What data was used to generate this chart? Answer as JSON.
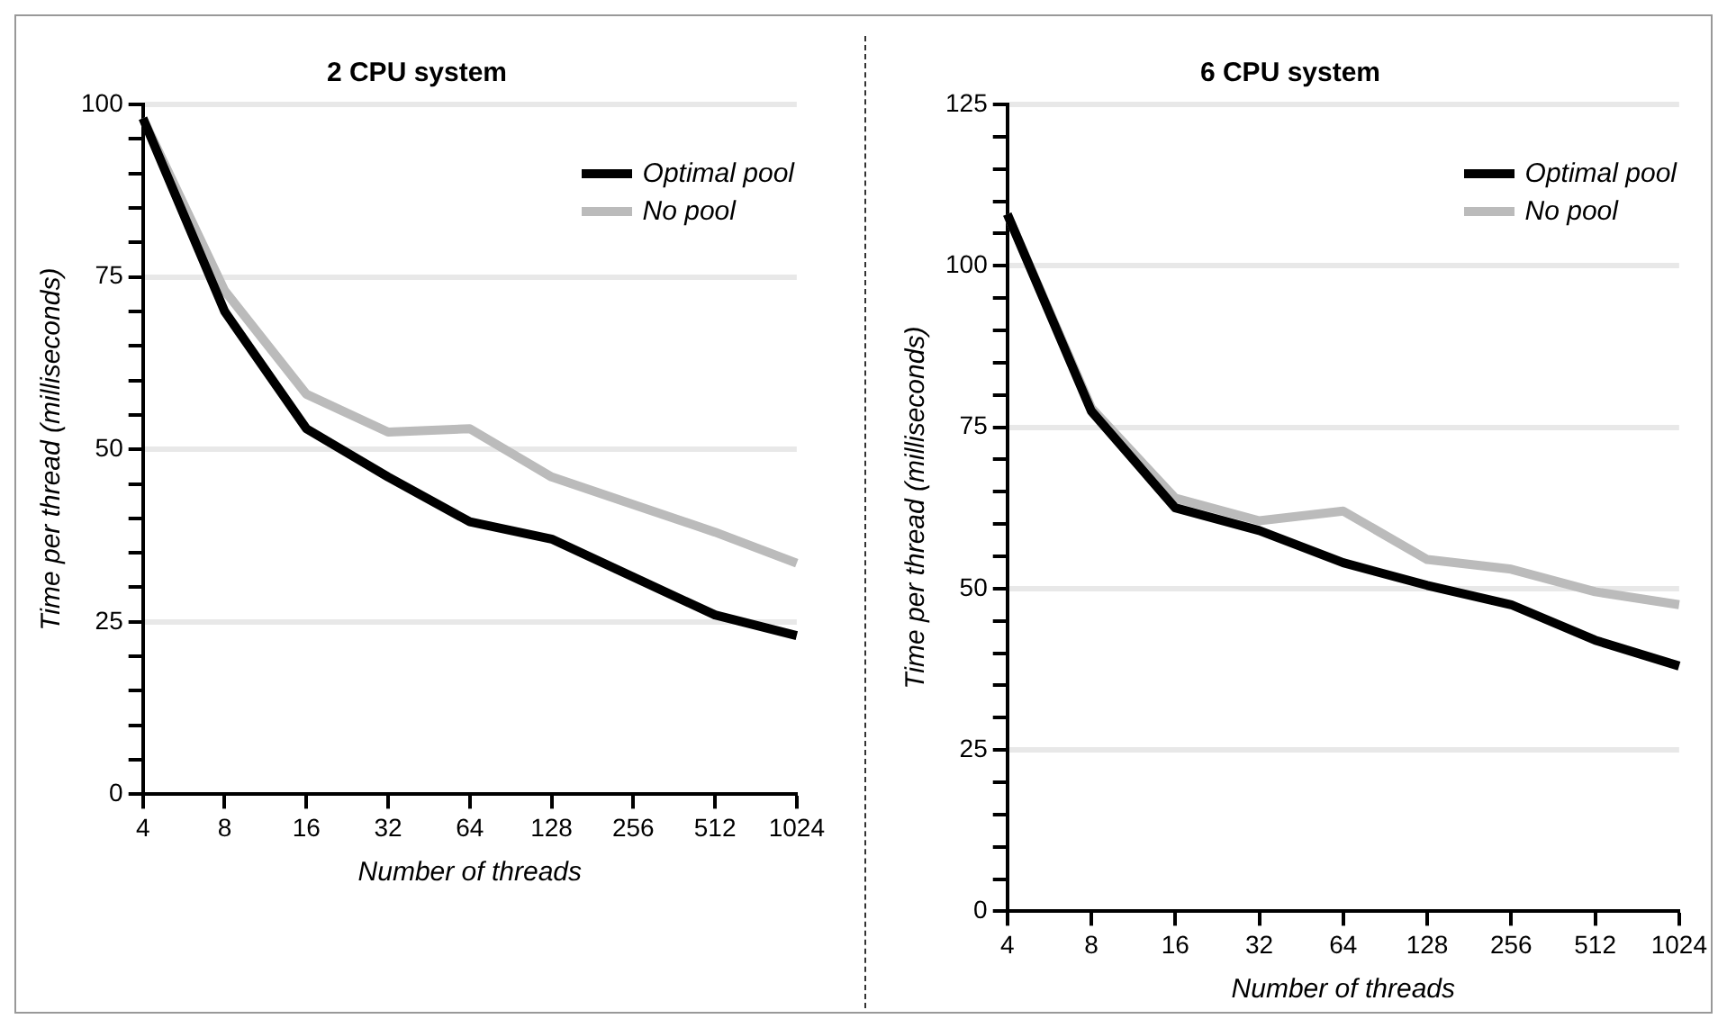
{
  "chart_data": [
    {
      "type": "line",
      "title": "2 CPU system",
      "xlabel": "Number of threads",
      "ylabel": "Time per thread (milliseconds)",
      "categories": [
        "4",
        "8",
        "16",
        "32",
        "64",
        "128",
        "256",
        "512",
        "1024"
      ],
      "series": [
        {
          "name": "Optimal pool",
          "color": "#000000",
          "values": [
            98,
            70,
            53,
            46,
            39.5,
            37,
            31.5,
            26,
            23
          ]
        },
        {
          "name": "No pool",
          "color": "#bbbbbb",
          "values": [
            98,
            73,
            58,
            52.5,
            53,
            46,
            42,
            38,
            33.5
          ]
        }
      ],
      "ylim": [
        0,
        100
      ],
      "yticks": [
        0,
        {
          "value": 5,
          "label": null
        },
        {
          "value": 10,
          "label": null
        },
        {
          "value": 15,
          "label": null
        },
        {
          "value": 20,
          "label": null
        },
        25,
        {
          "value": 30,
          "label": null
        },
        {
          "value": 35,
          "label": null
        },
        {
          "value": 40,
          "label": null
        },
        {
          "value": 45,
          "label": null
        },
        50,
        {
          "value": 55,
          "label": null
        },
        {
          "value": 60,
          "label": null
        },
        {
          "value": 65,
          "label": null
        },
        {
          "value": 70,
          "label": null
        },
        75,
        {
          "value": 80,
          "label": null
        },
        {
          "value": 85,
          "label": null
        },
        {
          "value": 90,
          "label": null
        },
        {
          "value": 95,
          "label": null
        },
        100
      ],
      "grid": "y",
      "legend": "top right",
      "marker": "none",
      "line_style": "solid"
    },
    {
      "type": "line",
      "title": "6 CPU system",
      "xlabel": "Number of threads",
      "ylabel": "Time per thread (milliseconds)",
      "categories": [
        "4",
        "8",
        "16",
        "32",
        "64",
        "128",
        "256",
        "512",
        "1024"
      ],
      "series": [
        {
          "name": "Optimal pool",
          "color": "#000000",
          "values": [
            108,
            77.5,
            62.5,
            59,
            54,
            50.5,
            47.5,
            42,
            38
          ]
        },
        {
          "name": "No pool",
          "color": "#bbbbbb",
          "values": [
            108,
            78,
            64,
            60.5,
            62,
            54.5,
            53,
            49.5,
            47.5
          ]
        }
      ],
      "ylim": [
        0,
        125
      ],
      "yticks": [
        0,
        {
          "value": 5,
          "label": null
        },
        {
          "value": 10,
          "label": null
        },
        {
          "value": 15,
          "label": null
        },
        {
          "value": 20,
          "label": null
        },
        25,
        {
          "value": 30,
          "label": null
        },
        {
          "value": 35,
          "label": null
        },
        {
          "value": 40,
          "label": null
        },
        {
          "value": 45,
          "label": null
        },
        50,
        {
          "value": 55,
          "label": null
        },
        {
          "value": 60,
          "label": null
        },
        {
          "value": 65,
          "label": null
        },
        {
          "value": 70,
          "label": null
        },
        75,
        {
          "value": 80,
          "label": null
        },
        {
          "value": 85,
          "label": null
        },
        {
          "value": 90,
          "label": null
        },
        {
          "value": 95,
          "label": null
        },
        100,
        {
          "value": 105,
          "label": null
        },
        {
          "value": 110,
          "label": null
        },
        {
          "value": 115,
          "label": null
        },
        {
          "value": 120,
          "label": null
        },
        125
      ],
      "grid": "y",
      "legend": "top right",
      "marker": "none",
      "line_style": "solid"
    }
  ]
}
